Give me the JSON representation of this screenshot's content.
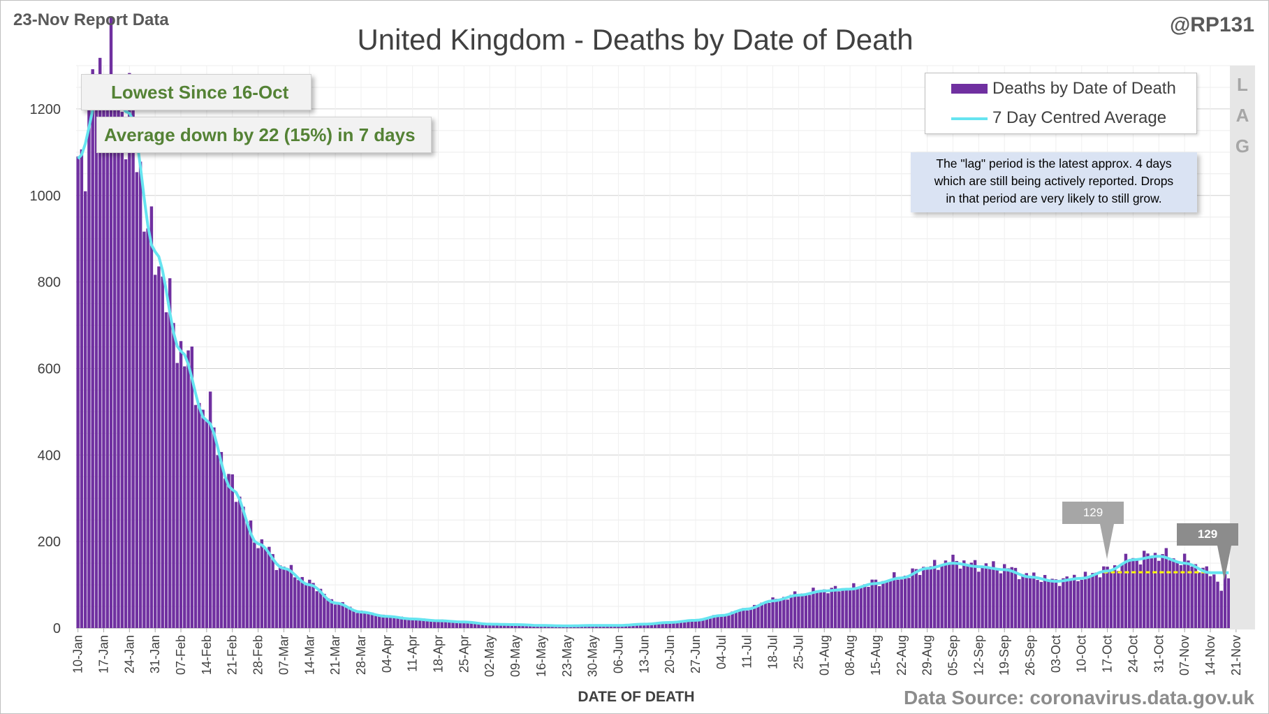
{
  "header": {
    "report_date": "23-Nov Report Data",
    "handle": "@RP131",
    "title": "United Kingdom - Deaths by Date of Death"
  },
  "footer": {
    "source": "Data Source: coronavirus.data.gov.uk"
  },
  "callouts": {
    "lowest": "Lowest Since 16-Oct",
    "average": "Average down by 22 (15%) in 7 days"
  },
  "legend": {
    "bars": "Deaths by Date of Death",
    "line": "7 Day Centred Average"
  },
  "note": {
    "lines": [
      "The \"lag\" period is the latest approx. 4 days",
      "which are still being actively reported.  Drops",
      "in that period are very likely to still grow."
    ]
  },
  "lag": {
    "letters": [
      "L",
      "A",
      "G"
    ]
  },
  "markers": {
    "left": "129",
    "right": "129"
  },
  "colors": {
    "bars": "#7030a0",
    "average_line": "#66e4f0",
    "reference_line": "#ffff00",
    "callout_text": "#548235",
    "note_bg": "#dae3f3",
    "lag_bg": "#e6e6e6"
  },
  "chart_data": {
    "type": "bar",
    "xlabel": "DATE OF DEATH",
    "ylabel": "",
    "ylim": [
      0,
      1300
    ],
    "yticks": [
      0,
      200,
      400,
      600,
      800,
      1000,
      1200
    ],
    "x_tick_labels": [
      "10-Jan",
      "17-Jan",
      "24-Jan",
      "31-Jan",
      "07-Feb",
      "14-Feb",
      "21-Feb",
      "28-Feb",
      "07-Mar",
      "14-Mar",
      "21-Mar",
      "28-Mar",
      "04-Apr",
      "11-Apr",
      "18-Apr",
      "25-Apr",
      "02-May",
      "09-May",
      "16-May",
      "23-May",
      "30-May",
      "06-Jun",
      "13-Jun",
      "20-Jun",
      "27-Jun",
      "04-Jul",
      "11-Jul",
      "18-Jul",
      "25-Jul",
      "01-Aug",
      "08-Aug",
      "15-Aug",
      "22-Aug",
      "29-Aug",
      "05-Sep",
      "12-Sep",
      "19-Sep",
      "26-Sep",
      "03-Oct",
      "10-Oct",
      "17-Oct",
      "24-Oct",
      "31-Oct",
      "07-Nov",
      "14-Nov",
      "21-Nov"
    ],
    "grid": true,
    "legend_position": "top-right",
    "series": [
      {
        "name": "Deaths by Date of Death",
        "kind": "bar",
        "weekly_values": [
          1090,
          1290,
          1180,
          860,
          650,
          500,
          330,
          200,
          140,
          105,
          60,
          38,
          28,
          22,
          18,
          15,
          10,
          8,
          6,
          5,
          6,
          6,
          10,
          14,
          18,
          30,
          45,
          65,
          78,
          88,
          92,
          105,
          118,
          140,
          155,
          145,
          140,
          120,
          110,
          118,
          135,
          160,
          170,
          155,
          129,
          28
        ]
      },
      {
        "name": "7 Day Centred Average",
        "kind": "line",
        "weekly_values": [
          1085,
          1270,
          1190,
          870,
          640,
          480,
          320,
          195,
          138,
          100,
          58,
          37,
          27,
          21,
          17,
          14,
          9,
          8,
          6,
          5,
          6,
          6,
          9,
          13,
          18,
          29,
          44,
          63,
          76,
          86,
          90,
          103,
          116,
          138,
          150,
          142,
          135,
          118,
          108,
          115,
          132,
          158,
          166,
          150,
          128
        ]
      }
    ],
    "reference_line": {
      "value": 129,
      "from": "17-Oct",
      "to": "14-Nov"
    }
  }
}
